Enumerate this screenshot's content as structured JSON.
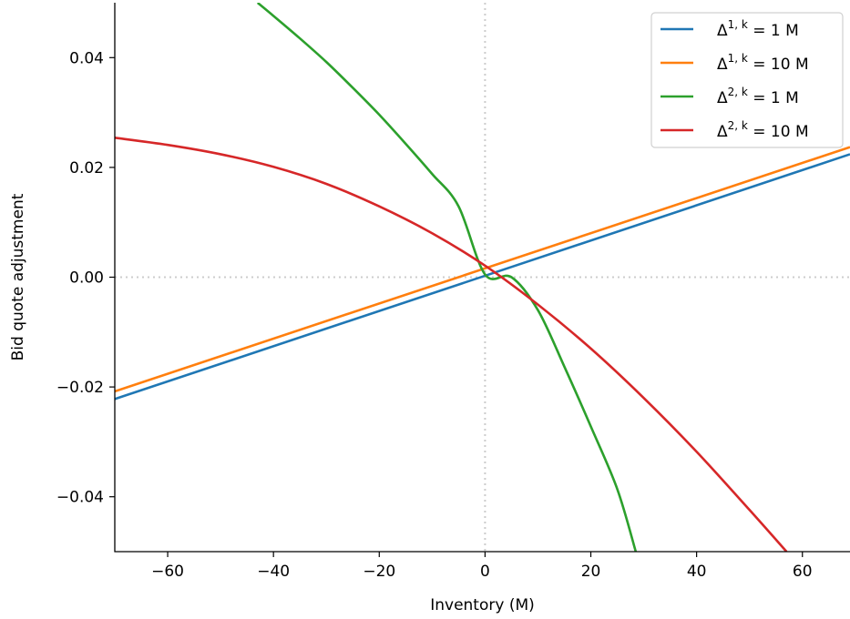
{
  "chart_data": {
    "type": "line",
    "title": "",
    "xlabel": "Inventory (M)",
    "ylabel": "Bid quote adjustment",
    "xlim": [
      -70,
      69
    ],
    "ylim": [
      -0.05,
      0.05
    ],
    "xticks": [
      -60,
      -40,
      -20,
      0,
      20,
      40,
      60
    ],
    "xtick_labels": [
      "−60",
      "−40",
      "−20",
      "0",
      "20",
      "40",
      "60"
    ],
    "yticks": [
      -0.04,
      -0.02,
      0.0,
      0.02,
      0.04
    ],
    "ytick_labels": [
      "−0.04",
      "−0.02",
      "0.00",
      "0.02",
      "0.04"
    ],
    "grid": false,
    "reference_lines": {
      "x": 0,
      "y": 0,
      "style": "dotted",
      "color": "#cccccc"
    },
    "legend": "top-right",
    "series": [
      {
        "name": "Δ^{1,k} = 1 M",
        "legend_base": "Δ",
        "legend_sup": "1, k",
        "legend_rest": " = 1 M",
        "color": "#1f77b4",
        "x": [
          -70,
          69
        ],
        "y": [
          -0.0222,
          0.0224
        ]
      },
      {
        "name": "Δ^{1,k} = 10 M",
        "legend_base": "Δ",
        "legend_sup": "1, k",
        "legend_rest": " = 10 M",
        "color": "#ff7f0e",
        "x": [
          -70,
          69
        ],
        "y": [
          -0.0208,
          0.0237
        ]
      },
      {
        "name": "Δ^{2,k} = 1 M",
        "legend_base": "Δ",
        "legend_sup": "2, k",
        "legend_rest": " = 1 M",
        "color": "#2ca02c",
        "x": [
          -43,
          -40,
          -35,
          -30,
          -25,
          -20,
          -15,
          -10,
          -5,
          0,
          5,
          10,
          15,
          20,
          25,
          28.5
        ],
        "y": [
          0.05,
          0.0476,
          0.0435,
          0.0392,
          0.0345,
          0.0296,
          0.0243,
          0.0188,
          0.0129,
          0.0005,
          0.0,
          -0.006,
          -0.0163,
          -0.0272,
          -0.0386,
          -0.05
        ]
      },
      {
        "name": "Δ^{2,k} = 10 M",
        "legend_base": "Δ",
        "legend_sup": "2, k",
        "legend_rest": " = 10 M",
        "color": "#d62728",
        "x": [
          -70,
          -60,
          -50,
          -40,
          -30,
          -20,
          -10,
          0,
          10,
          20,
          30,
          40,
          50,
          57
        ],
        "y": [
          0.0254,
          0.0241,
          0.0224,
          0.0201,
          0.017,
          0.0129,
          0.008,
          0.0021,
          -0.005,
          -0.013,
          -0.022,
          -0.0318,
          -0.0424,
          -0.05
        ]
      }
    ]
  }
}
